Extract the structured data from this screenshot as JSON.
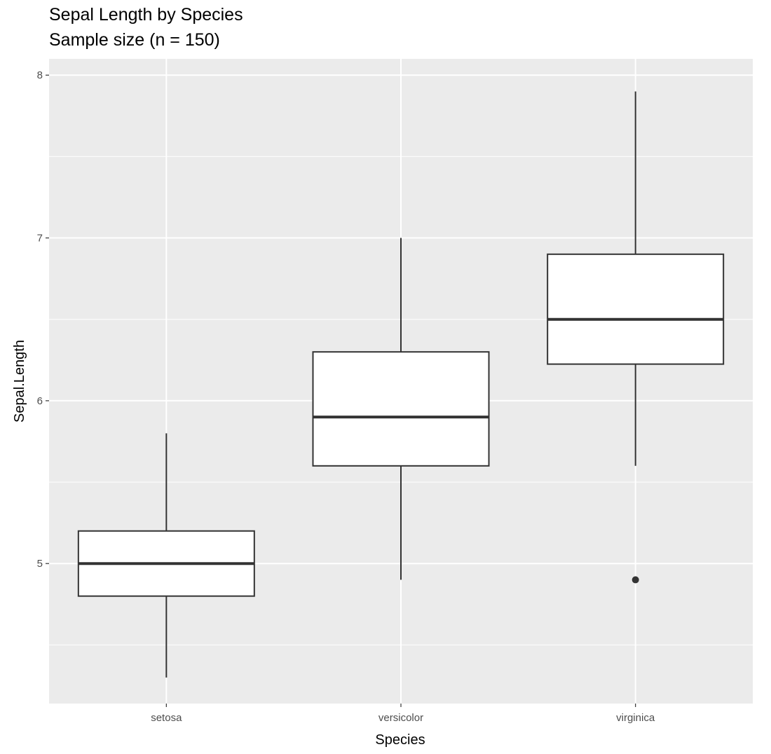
{
  "chart_data": {
    "type": "boxplot",
    "title": "Sepal Length by Species",
    "subtitle": "Sample size (n = 150)",
    "xlabel": "Species",
    "ylabel": "Sepal.Length",
    "ylim": [
      4.14,
      8.1
    ],
    "yticks": [
      5,
      6,
      7,
      8
    ],
    "ytick_labels": [
      "5",
      "6",
      "7",
      "8"
    ],
    "categories": [
      "setosa",
      "versicolor",
      "virginica"
    ],
    "boxes": [
      {
        "category": "setosa",
        "whisker_low": 4.3,
        "q1": 4.8,
        "median": 5.0,
        "q3": 5.2,
        "whisker_high": 5.8,
        "outliers": []
      },
      {
        "category": "versicolor",
        "whisker_low": 4.9,
        "q1": 5.6,
        "median": 5.9,
        "q3": 6.3,
        "whisker_high": 7.0,
        "outliers": []
      },
      {
        "category": "virginica",
        "whisker_low": 5.6,
        "q1": 6.225,
        "median": 6.5,
        "q3": 6.9,
        "whisker_high": 7.9,
        "outliers": [
          4.9
        ]
      }
    ],
    "grid": true,
    "legend": "none",
    "colors": {
      "panel": "#ebebeb",
      "grid": "#ffffff",
      "box_fill": "#ffffff",
      "box_line": "#333333",
      "text": "#4d4d4d"
    }
  }
}
